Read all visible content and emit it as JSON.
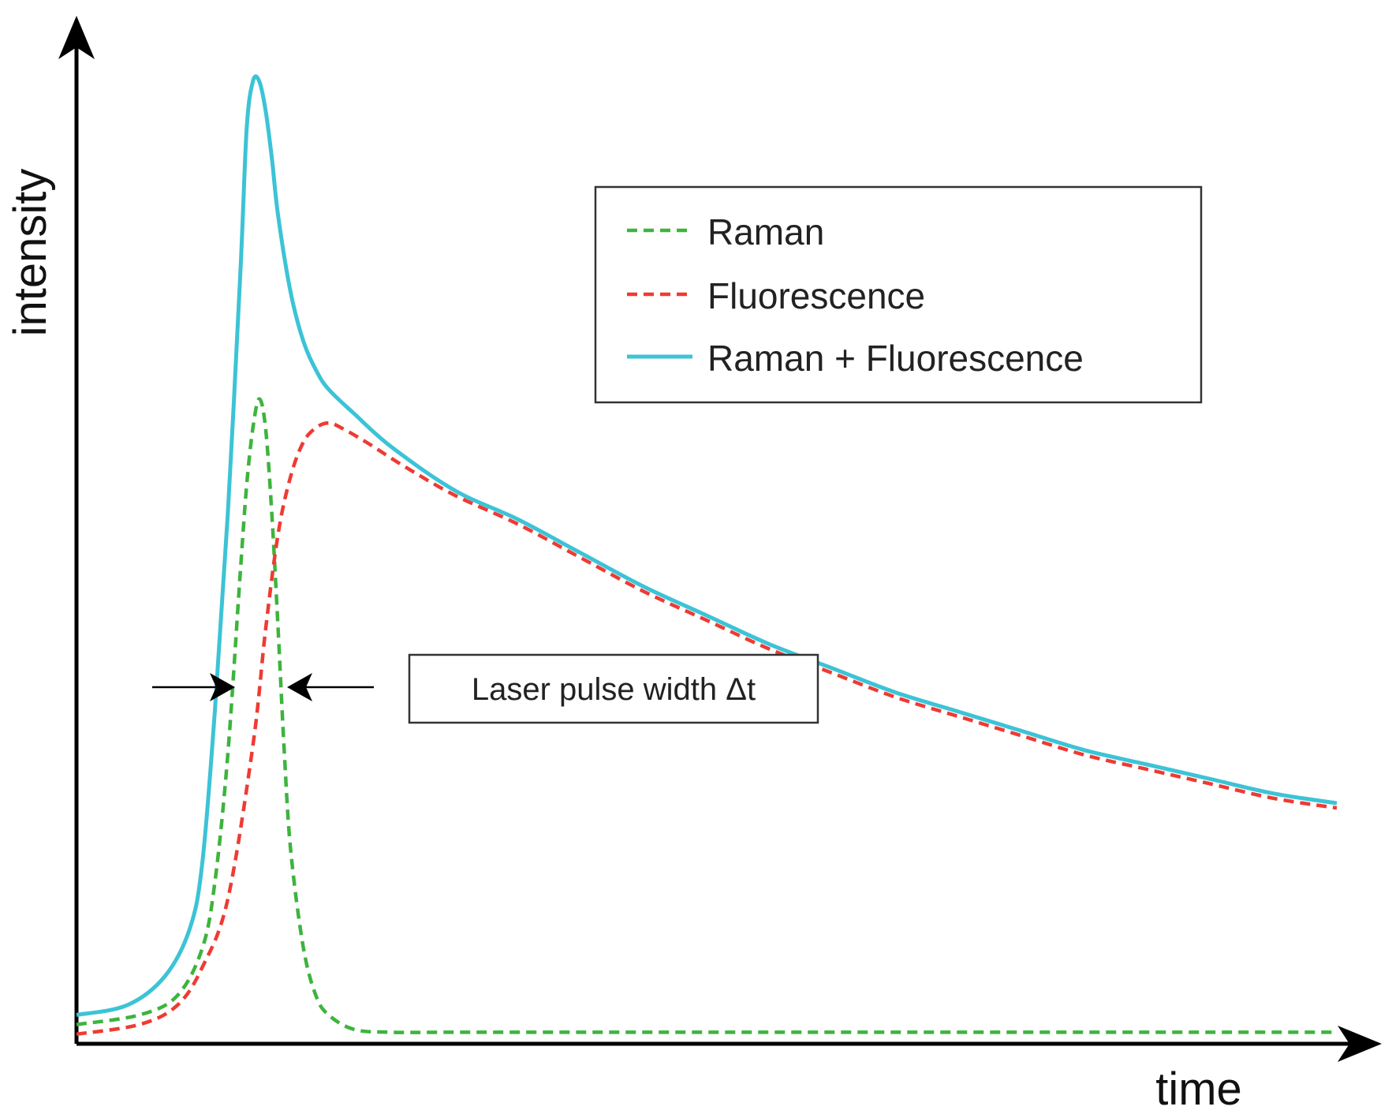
{
  "colors": {
    "raman": "#3db43d",
    "fluorescence": "#ee3b33",
    "combined": "#3cc3d6",
    "axis": "#000000"
  },
  "chart_data": {
    "type": "line",
    "title": "",
    "xlabel": "time",
    "ylabel": "intensity",
    "xlim": [
      0,
      10
    ],
    "ylim": [
      0,
      1
    ],
    "grid": false,
    "legend": {
      "placement": "top-right",
      "entries": [
        "Raman",
        "Fluorescence",
        "Raman + Fluorescence"
      ]
    },
    "series": [
      {
        "name": "Raman",
        "style": "dashed",
        "color_key": "raman",
        "x": [
          0,
          0.5,
          0.8,
          1.0,
          1.1,
          1.2,
          1.3,
          1.35,
          1.4,
          1.45,
          1.5,
          1.55,
          1.6,
          1.65,
          1.7,
          1.8,
          1.9,
          2.0,
          2.2,
          2.5,
          3.0,
          4.0,
          5.0,
          6.0,
          7.0,
          8.0,
          9.0,
          10.0
        ],
        "y": [
          0.02,
          0.03,
          0.05,
          0.1,
          0.17,
          0.3,
          0.49,
          0.58,
          0.64,
          0.67,
          0.64,
          0.55,
          0.43,
          0.3,
          0.2,
          0.1,
          0.05,
          0.03,
          0.015,
          0.012,
          0.012,
          0.012,
          0.012,
          0.012,
          0.012,
          0.012,
          0.012,
          0.012
        ]
      },
      {
        "name": "Fluorescence",
        "style": "dashed",
        "color_key": "fluorescence",
        "x": [
          0,
          0.5,
          0.8,
          1.0,
          1.2,
          1.4,
          1.5,
          1.6,
          1.7,
          1.8,
          1.9,
          2.0,
          2.1,
          2.3,
          2.6,
          3.0,
          3.5,
          4.0,
          4.5,
          5.0,
          5.5,
          6.0,
          6.5,
          7.0,
          7.5,
          8.0,
          8.5,
          9.0,
          9.5,
          10.0
        ],
        "y": [
          0.01,
          0.02,
          0.04,
          0.08,
          0.15,
          0.31,
          0.43,
          0.53,
          0.59,
          0.625,
          0.64,
          0.645,
          0.64,
          0.625,
          0.6,
          0.57,
          0.54,
          0.505,
          0.47,
          0.44,
          0.41,
          0.385,
          0.36,
          0.34,
          0.32,
          0.3,
          0.285,
          0.27,
          0.255,
          0.245
        ]
      },
      {
        "name": "Raman + Fluorescence",
        "style": "solid",
        "color_key": "combined",
        "x": [
          0,
          0.4,
          0.7,
          0.9,
          1.0,
          1.1,
          1.2,
          1.3,
          1.35,
          1.4,
          1.45,
          1.5,
          1.55,
          1.6,
          1.7,
          1.8,
          1.9,
          2.0,
          2.2,
          2.5,
          3.0,
          3.5,
          4.0,
          4.5,
          5.0,
          5.5,
          6.0,
          6.5,
          7.0,
          7.5,
          8.0,
          8.5,
          9.0,
          9.5,
          10.0
        ],
        "y": [
          0.03,
          0.04,
          0.07,
          0.12,
          0.19,
          0.35,
          0.55,
          0.8,
          0.95,
          1.0,
          1.0,
          0.97,
          0.92,
          0.86,
          0.78,
          0.73,
          0.7,
          0.68,
          0.655,
          0.62,
          0.575,
          0.545,
          0.51,
          0.475,
          0.445,
          0.415,
          0.39,
          0.365,
          0.345,
          0.325,
          0.305,
          0.29,
          0.275,
          0.26,
          0.25
        ]
      }
    ],
    "annotations": [
      {
        "text": "Laser pulse width Δt",
        "x_from": 1.2,
        "x_to": 1.6,
        "y": 0.31
      }
    ]
  }
}
